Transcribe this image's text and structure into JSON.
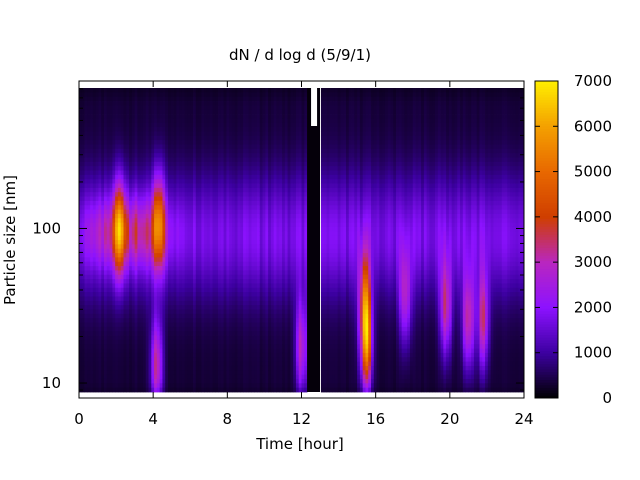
{
  "chart_data": {
    "type": "heatmap",
    "title": "dN / d log d (5/9/1)",
    "xlabel": "Time [hour]",
    "ylabel": "Particle size [nm]",
    "xlim": [
      0,
      24
    ],
    "x_ticks": [
      "0",
      "4",
      "8",
      "12",
      "16",
      "20",
      "24"
    ],
    "y_scale": "log",
    "ylim": [
      8,
      900
    ],
    "y_ticks": [
      "10",
      "100"
    ],
    "colorbar": {
      "range": [
        0,
        7000
      ],
      "ticks": [
        "0",
        "1000",
        "2000",
        "3000",
        "4000",
        "5000",
        "6000",
        "7000"
      ],
      "palette": [
        "#000000",
        "#3c00a0",
        "#8c12ff",
        "#b926c0",
        "#cf3e00",
        "#e86800",
        "#f4a000",
        "#ffee00"
      ]
    },
    "missing_data": {
      "start_hour": 12.3,
      "end_hour": 13.0
    },
    "grid": false,
    "events": [
      {
        "hour": 2.2,
        "peak_d_nm": 100,
        "value": 4300
      },
      {
        "hour": 4.3,
        "peak_d_nm": 110,
        "value": 4100
      },
      {
        "hour": 4.2,
        "peak_d_nm": 13,
        "value": 3600
      },
      {
        "hour": 12.0,
        "peak_d_nm": 17,
        "value": 3300
      },
      {
        "hour": 15.5,
        "peak_d_nm": 18,
        "value": 5300
      },
      {
        "hour": 15.4,
        "peak_d_nm": 35,
        "value": 4000
      },
      {
        "hour": 19.8,
        "peak_d_nm": 30,
        "value": 3500
      },
      {
        "hour": 21.0,
        "peak_d_nm": 25,
        "value": 3700
      },
      {
        "hour": 21.8,
        "peak_d_nm": 25,
        "value": 3500
      },
      {
        "hour": 17.6,
        "peak_d_nm": 35,
        "value": 3100
      }
    ]
  }
}
